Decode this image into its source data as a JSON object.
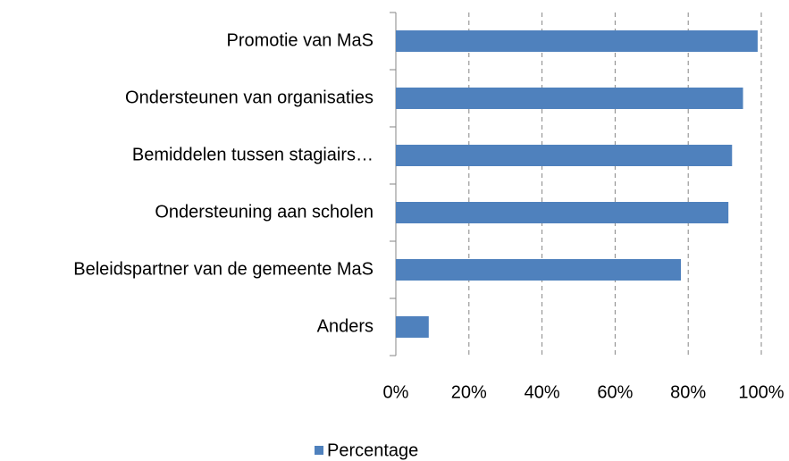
{
  "chart_data": {
    "type": "barh",
    "categories": [
      "Promotie van MaS",
      "Ondersteunen van organisaties",
      "Bemiddelen tussen stagiairs…",
      "Ondersteuning aan scholen",
      "Beleidspartner van de gemeente MaS",
      "Anders"
    ],
    "series": [
      {
        "name": "Percentage",
        "color": "#4f81bd",
        "values": [
          99,
          95,
          92,
          91,
          78,
          9
        ]
      }
    ],
    "xlim": [
      0,
      100
    ],
    "xticks": [
      {
        "value": 0,
        "label": "0%"
      },
      {
        "value": 20,
        "label": "20%"
      },
      {
        "value": 40,
        "label": "40%"
      },
      {
        "value": 60,
        "label": "60%"
      },
      {
        "value": 80,
        "label": "80%"
      },
      {
        "value": 100,
        "label": "100%"
      }
    ],
    "grid": true,
    "legend": "bottom"
  }
}
